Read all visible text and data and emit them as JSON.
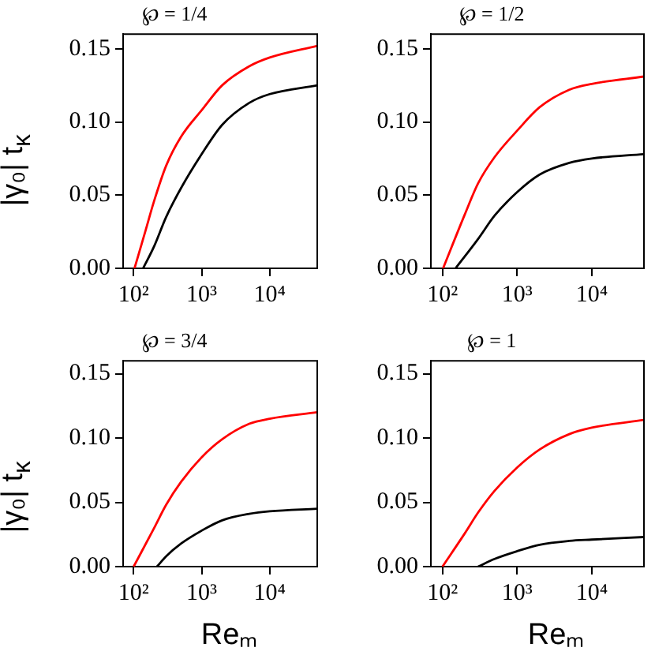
{
  "chart_data": [
    {
      "type": "line",
      "title": "℘ = 1/4",
      "ylabel": "|γ₀| t$_{κ}$",
      "log": "x",
      "grid": false,
      "xlim": [
        70,
        50000
      ],
      "ylim": [
        0,
        0.16
      ],
      "xticks": [
        {
          "value": 100,
          "label": "10²"
        },
        {
          "value": 1000,
          "label": "10³"
        },
        {
          "value": 10000,
          "label": "10⁴"
        }
      ],
      "yticks": [
        {
          "value": 0,
          "label": "0.00"
        },
        {
          "value": 0.05,
          "label": "0.05"
        },
        {
          "value": 0.1,
          "label": "0.10"
        },
        {
          "value": 0.15,
          "label": "0.15"
        }
      ],
      "series": [
        {
          "color": "#ff0000",
          "x": [
            103,
            150,
            200,
            300,
            500,
            1000,
            2000,
            5000,
            10000,
            50000
          ],
          "values": [
            0,
            0.026,
            0.046,
            0.07,
            0.09,
            0.108,
            0.125,
            0.138,
            0.144,
            0.152
          ]
        },
        {
          "color": "#000000",
          "x": [
            138,
            200,
            300,
            500,
            1000,
            2000,
            5000,
            10000,
            50000
          ],
          "values": [
            0,
            0.015,
            0.035,
            0.055,
            0.078,
            0.098,
            0.113,
            0.119,
            0.125
          ]
        }
      ]
    },
    {
      "type": "line",
      "title": "℘ = 1/2",
      "log": "x",
      "grid": false,
      "xlim": [
        70,
        50000
      ],
      "ylim": [
        0,
        0.16
      ],
      "xticks": [
        {
          "value": 100,
          "label": "10²"
        },
        {
          "value": 1000,
          "label": "10³"
        },
        {
          "value": 10000,
          "label": "10⁴"
        }
      ],
      "yticks": [
        {
          "value": 0,
          "label": "0.00"
        },
        {
          "value": 0.05,
          "label": "0.05"
        },
        {
          "value": 0.1,
          "label": "0.10"
        },
        {
          "value": 0.15,
          "label": "0.15"
        }
      ],
      "series": [
        {
          "color": "#ff0000",
          "x": [
            102,
            200,
            300,
            500,
            1000,
            2000,
            5000,
            10000,
            50000
          ],
          "values": [
            0,
            0.037,
            0.058,
            0.076,
            0.094,
            0.11,
            0.122,
            0.126,
            0.131
          ]
        },
        {
          "color": "#000000",
          "x": [
            150,
            300,
            500,
            1000,
            2000,
            5000,
            10000,
            50000
          ],
          "values": [
            0,
            0.02,
            0.036,
            0.052,
            0.064,
            0.072,
            0.075,
            0.078
          ]
        }
      ]
    },
    {
      "type": "line",
      "title": "℘ = 3/4",
      "xlabel": "Reₘ",
      "ylabel": "|γ₀| t$_{κ}$",
      "log": "x",
      "grid": false,
      "xlim": [
        70,
        50000
      ],
      "ylim": [
        0,
        0.16
      ],
      "xticks": [
        {
          "value": 100,
          "label": "10²"
        },
        {
          "value": 1000,
          "label": "10³"
        },
        {
          "value": 10000,
          "label": "10⁴"
        }
      ],
      "yticks": [
        {
          "value": 0,
          "label": "0.00"
        },
        {
          "value": 0.05,
          "label": "0.05"
        },
        {
          "value": 0.1,
          "label": "0.10"
        },
        {
          "value": 0.15,
          "label": "0.15"
        }
      ],
      "series": [
        {
          "color": "#ff0000",
          "x": [
            100,
            200,
            300,
            500,
            1000,
            2000,
            5000,
            10000,
            50000
          ],
          "values": [
            0,
            0.03,
            0.048,
            0.066,
            0.085,
            0.099,
            0.111,
            0.115,
            0.12
          ]
        },
        {
          "color": "#000000",
          "x": [
            220,
            300,
            500,
            1000,
            2000,
            5000,
            10000,
            50000
          ],
          "values": [
            0,
            0.008,
            0.018,
            0.028,
            0.036,
            0.041,
            0.043,
            0.045
          ]
        }
      ]
    },
    {
      "type": "line",
      "title": "℘ = 1",
      "xlabel": "Reₘ",
      "log": "x",
      "grid": false,
      "xlim": [
        70,
        50000
      ],
      "ylim": [
        0,
        0.16
      ],
      "xticks": [
        {
          "value": 100,
          "label": "10²"
        },
        {
          "value": 1000,
          "label": "10³"
        },
        {
          "value": 10000,
          "label": "10⁴"
        }
      ],
      "yticks": [
        {
          "value": 0,
          "label": "0.00"
        },
        {
          "value": 0.05,
          "label": "0.05"
        },
        {
          "value": 0.1,
          "label": "0.10"
        },
        {
          "value": 0.15,
          "label": "0.15"
        }
      ],
      "series": [
        {
          "color": "#ff0000",
          "x": [
            100,
            200,
            300,
            500,
            1000,
            2000,
            5000,
            10000,
            50000
          ],
          "values": [
            0,
            0.026,
            0.042,
            0.059,
            0.077,
            0.091,
            0.103,
            0.108,
            0.114
          ]
        },
        {
          "color": "#000000",
          "x": [
            300,
            500,
            1000,
            2000,
            5000,
            10000,
            50000
          ],
          "values": [
            0,
            0.006,
            0.012,
            0.017,
            0.02,
            0.021,
            0.023
          ]
        }
      ]
    }
  ]
}
